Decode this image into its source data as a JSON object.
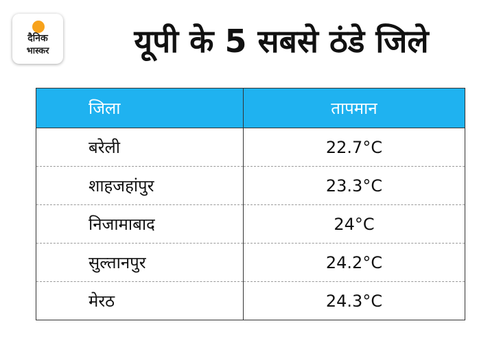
{
  "logo": {
    "line1": "दैनिक",
    "line2": "भास्कर"
  },
  "header": {
    "title": "यूपी के 5 सबसे ठंडे जिले"
  },
  "table": {
    "columns": [
      "जिला",
      "तापमान"
    ],
    "rows": [
      [
        "बरेली",
        "22.7°C"
      ],
      [
        "शाहजहांपुर",
        "23.3°C"
      ],
      [
        "निजामाबाद",
        "24°C"
      ],
      [
        "सुल्तानपुर",
        "24.2°C"
      ],
      [
        "मेरठ",
        "24.3°C"
      ]
    ]
  }
}
